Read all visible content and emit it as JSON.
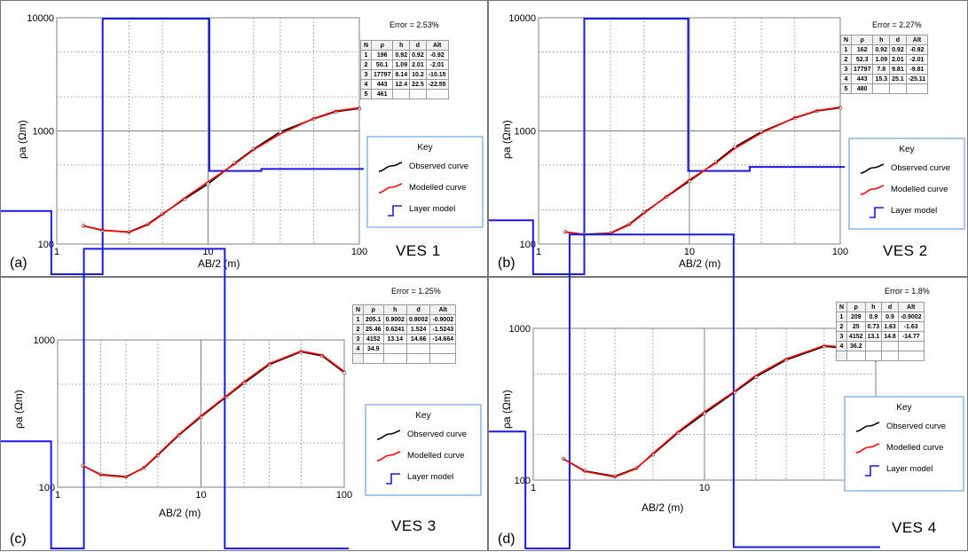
{
  "key": {
    "title": "Key",
    "observed": "Observed curve",
    "modelled": "Modelled curve",
    "layer": "Layer model"
  },
  "table_headers": [
    "N",
    "ρ",
    "h",
    "d",
    "Alt"
  ],
  "colors": {
    "observed": "#000000",
    "modelled": "#ff0000",
    "layer": "#1a1ae6",
    "key_border": "#a8c8e8"
  },
  "chart_data": [
    {
      "type": "line",
      "panel": "(a)",
      "title": "VES 1",
      "error": "Error = 2.53%",
      "xlabel": "AB/2 (m)",
      "ylabel": "ρa (Ωm)",
      "xscale": "log",
      "yscale": "log",
      "xlim": [
        1,
        100
      ],
      "ylim": [
        100,
        10000
      ],
      "xticks": [
        "1",
        "10",
        "100"
      ],
      "yticks": [
        "100",
        "1000",
        "10000"
      ],
      "grid": true,
      "legend": "right",
      "table": [
        [
          "1",
          "196",
          "0.92",
          "0.92",
          "-0.92"
        ],
        [
          "2",
          "50.1",
          "1.09",
          "2.01",
          "-2.01"
        ],
        [
          "3",
          "17797",
          "8.14",
          "10.2",
          "-10.15"
        ],
        [
          "4",
          "443",
          "12.4",
          "22.5",
          "-22.55"
        ],
        [
          "5",
          "461",
          "",
          "",
          ""
        ]
      ],
      "layer_model": {
        "depth_edges": [
          0.92,
          2.01,
          10.2,
          22.5
        ],
        "resistivity": [
          196,
          50.1,
          17797,
          443,
          461
        ]
      },
      "series": [
        {
          "name": "Observed curve",
          "x": [
            1.5,
            2,
            3,
            4,
            5,
            7,
            10,
            15,
            20,
            30,
            50,
            70,
            100
          ],
          "y": [
            145,
            132,
            128,
            150,
            185,
            250,
            340,
            520,
            690,
            980,
            1280,
            1480,
            1580
          ]
        },
        {
          "name": "Modelled curve",
          "x": [
            1.5,
            2,
            3,
            4,
            5,
            7,
            10,
            15,
            20,
            30,
            50,
            70,
            100
          ],
          "y": [
            145,
            133,
            127,
            148,
            183,
            255,
            355,
            510,
            680,
            940,
            1290,
            1500,
            1600
          ]
        }
      ]
    },
    {
      "type": "line",
      "panel": "(b)",
      "title": "VES 2",
      "error": "Error = 2.27%",
      "xlabel": "AB/2 (m)",
      "ylabel": "ρa (Ωm)",
      "xscale": "log",
      "yscale": "log",
      "xlim": [
        1,
        100
      ],
      "ylim": [
        100,
        10000
      ],
      "xticks": [
        "1",
        "10",
        "100"
      ],
      "yticks": [
        "100",
        "1000",
        "10000"
      ],
      "grid": true,
      "legend": "right",
      "table": [
        [
          "1",
          "162",
          "0.92",
          "0.92",
          "-0.92"
        ],
        [
          "2",
          "52.3",
          "1.09",
          "2.01",
          "-2.01"
        ],
        [
          "3",
          "17797",
          "7.8",
          "9.81",
          "-9.81"
        ],
        [
          "4",
          "443",
          "15.3",
          "25.1",
          "-25.11"
        ],
        [
          "5",
          "480",
          "",
          "",
          ""
        ]
      ],
      "layer_model": {
        "depth_edges": [
          0.92,
          2.01,
          9.81,
          25.1
        ],
        "resistivity": [
          162,
          52.3,
          17797,
          443,
          480
        ]
      },
      "series": [
        {
          "name": "Observed curve",
          "x": [
            1.5,
            2,
            3,
            4,
            5,
            7,
            10,
            15,
            20,
            30,
            50,
            70,
            100
          ],
          "y": [
            128,
            122,
            125,
            150,
            190,
            260,
            360,
            530,
            720,
            980,
            1300,
            1500,
            1600
          ]
        },
        {
          "name": "Modelled curve",
          "x": [
            1.5,
            2,
            3,
            4,
            5,
            7,
            10,
            15,
            20,
            30,
            50,
            70,
            100
          ],
          "y": [
            128,
            121,
            124,
            148,
            187,
            262,
            370,
            520,
            700,
            960,
            1310,
            1510,
            1620
          ]
        }
      ]
    },
    {
      "type": "line",
      "panel": "(c)",
      "title": "VES 3",
      "error": "Error = 1.25%",
      "xlabel": "AB/2 (m)",
      "ylabel": "ρa (Ωm)",
      "xscale": "log",
      "yscale": "log",
      "xlim": [
        1,
        100
      ],
      "ylim": [
        100,
        1000
      ],
      "xticks": [
        "1",
        "10",
        "100"
      ],
      "yticks": [
        "100",
        "1000"
      ],
      "grid": true,
      "legend": "right",
      "table": [
        [
          "1",
          "205.1",
          "0.9002",
          "0.9002",
          "-0.9002"
        ],
        [
          "2",
          "25.46",
          "0.6241",
          "1.524",
          "-1.5243"
        ],
        [
          "3",
          "4152",
          "13.14",
          "14.66",
          "-14.664"
        ],
        [
          "4",
          "34.9",
          "",
          "",
          ""
        ],
        [
          "",
          "",
          "",
          "",
          ""
        ]
      ],
      "layer_model": {
        "depth_edges": [
          0.9002,
          1.524,
          14.66
        ],
        "resistivity": [
          205.1,
          25.46,
          4152,
          34.9
        ]
      },
      "series": [
        {
          "name": "Observed curve",
          "x": [
            1.5,
            2,
            3,
            4,
            5,
            7,
            10,
            15,
            20,
            30,
            50,
            70,
            100
          ],
          "y": [
            140,
            122,
            118,
            135,
            165,
            225,
            300,
            410,
            510,
            680,
            830,
            780,
            600
          ]
        },
        {
          "name": "Modelled curve",
          "x": [
            1.5,
            2,
            3,
            4,
            5,
            7,
            10,
            15,
            20,
            30,
            50,
            70,
            100
          ],
          "y": [
            140,
            121,
            117,
            136,
            167,
            228,
            305,
            415,
            520,
            690,
            840,
            790,
            610
          ]
        }
      ]
    },
    {
      "type": "line",
      "panel": "(d)",
      "title": "VES 4",
      "error": "Error = 1.8%",
      "xlabel": "AB/2 (m)",
      "ylabel": "ρa (Ωm)",
      "xscale": "log",
      "yscale": "log",
      "xlim": [
        1,
        100
      ],
      "ylim": [
        100,
        1000
      ],
      "xticks": [
        "1",
        "10",
        "100"
      ],
      "yticks": [
        "100",
        "1000"
      ],
      "grid": true,
      "legend": "right",
      "table": [
        [
          "1",
          "209",
          "0.9",
          "0.9",
          "-0.9002"
        ],
        [
          "2",
          "25",
          "0.73",
          "1.63",
          "-1.63"
        ],
        [
          "3",
          "4152",
          "13.1",
          "14.8",
          "-14.77"
        ],
        [
          "4",
          "36.2",
          "",
          "",
          ""
        ],
        [
          "",
          "",
          "",
          "",
          ""
        ]
      ],
      "layer_model": {
        "depth_edges": [
          0.9,
          1.63,
          14.8
        ],
        "resistivity": [
          209,
          25,
          4152,
          36.2
        ]
      },
      "series": [
        {
          "name": "Observed curve",
          "x": [
            1.5,
            2,
            3,
            4,
            5,
            7,
            10,
            15,
            20,
            30,
            50,
            70,
            100
          ],
          "y": [
            138,
            115,
            106,
            120,
            148,
            205,
            275,
            380,
            480,
            620,
            760,
            740,
            620
          ]
        },
        {
          "name": "Modelled curve",
          "x": [
            1.5,
            2,
            3,
            4,
            5,
            7,
            10,
            15,
            20,
            30,
            50,
            70,
            100
          ],
          "y": [
            138,
            114,
            105,
            119,
            150,
            208,
            282,
            385,
            490,
            630,
            770,
            750,
            630
          ]
        }
      ]
    }
  ]
}
